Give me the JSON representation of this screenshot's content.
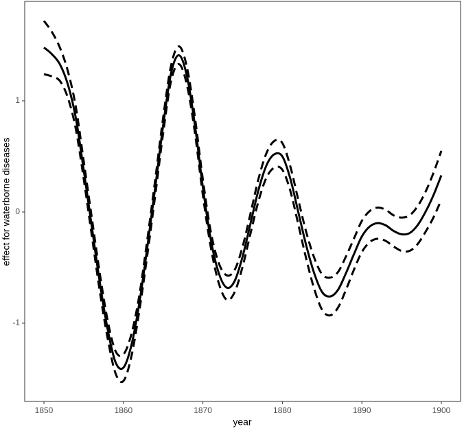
{
  "chart_data": {
    "type": "line",
    "x_label": "year",
    "y_label": "effect for waterborne diseases",
    "x": [
      1850,
      1851,
      1852,
      1853,
      1854,
      1855,
      1856,
      1857,
      1858,
      1859,
      1860,
      1861,
      1862,
      1863,
      1864,
      1865,
      1866,
      1867,
      1868,
      1869,
      1870,
      1871,
      1872,
      1873,
      1874,
      1875,
      1876,
      1877,
      1878,
      1879,
      1880,
      1881,
      1882,
      1883,
      1884,
      1885,
      1886,
      1887,
      1888,
      1889,
      1890,
      1891,
      1892,
      1893,
      1894,
      1895,
      1896,
      1897,
      1898,
      1899,
      1900
    ],
    "series": [
      {
        "color": "#000000",
        "linestyle": "solid",
        "values": [
          1.48,
          1.42,
          1.33,
          1.15,
          0.85,
          0.38,
          -0.12,
          -0.62,
          -1.05,
          -1.35,
          -1.4,
          -1.2,
          -0.82,
          -0.32,
          0.22,
          0.78,
          1.25,
          1.41,
          1.22,
          0.78,
          0.22,
          -0.25,
          -0.55,
          -0.68,
          -0.62,
          -0.4,
          -0.1,
          0.2,
          0.42,
          0.52,
          0.5,
          0.3,
          0.0,
          -0.3,
          -0.55,
          -0.72,
          -0.76,
          -0.7,
          -0.55,
          -0.38,
          -0.22,
          -0.13,
          -0.1,
          -0.12,
          -0.17,
          -0.2,
          -0.19,
          -0.12,
          0.0,
          0.15,
          0.33
        ]
      },
      {
        "color": "#000000",
        "linestyle": "dashed",
        "values": [
          1.72,
          1.62,
          1.48,
          1.27,
          0.95,
          0.46,
          -0.04,
          -0.54,
          -0.97,
          -1.25,
          -1.28,
          -1.1,
          -0.75,
          -0.25,
          0.29,
          0.85,
          1.32,
          1.49,
          1.3,
          0.85,
          0.29,
          -0.18,
          -0.46,
          -0.57,
          -0.52,
          -0.31,
          -0.01,
          0.3,
          0.53,
          0.64,
          0.62,
          0.41,
          0.11,
          -0.18,
          -0.41,
          -0.56,
          -0.59,
          -0.54,
          -0.4,
          -0.24,
          -0.08,
          0.01,
          0.04,
          0.02,
          -0.03,
          -0.05,
          -0.03,
          0.05,
          0.18,
          0.35,
          0.55
        ]
      },
      {
        "color": "#000000",
        "linestyle": "dashed",
        "values": [
          1.24,
          1.22,
          1.18,
          1.03,
          0.75,
          0.3,
          -0.2,
          -0.7,
          -1.13,
          -1.45,
          -1.52,
          -1.3,
          -0.89,
          -0.39,
          0.15,
          0.71,
          1.18,
          1.33,
          1.14,
          0.71,
          0.15,
          -0.32,
          -0.64,
          -0.79,
          -0.72,
          -0.49,
          -0.19,
          0.1,
          0.31,
          0.4,
          0.38,
          0.19,
          -0.11,
          -0.42,
          -0.69,
          -0.88,
          -0.93,
          -0.86,
          -0.7,
          -0.52,
          -0.36,
          -0.27,
          -0.24,
          -0.26,
          -0.31,
          -0.35,
          -0.35,
          -0.29,
          -0.18,
          -0.05,
          0.11
        ]
      }
    ],
    "xlim": [
      1847.58,
      1902.42
    ],
    "ylim": [
      -1.704,
      1.895
    ],
    "xticks": [
      1850,
      1860,
      1870,
      1880,
      1890,
      1900
    ],
    "yticks": [
      -1,
      0,
      1
    ],
    "grid": false
  }
}
